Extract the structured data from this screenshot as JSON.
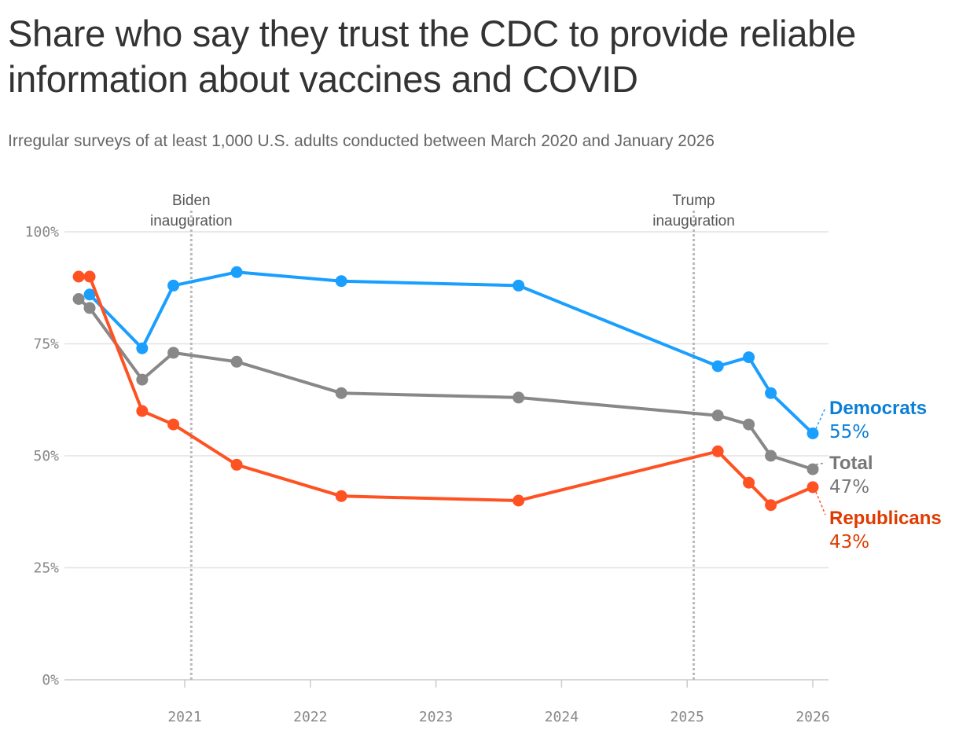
{
  "title": "Share who say they trust the CDC to provide reliable information about vaccines and COVID",
  "subtitle": "Irregular surveys of at least 1,000 U.S. adults conducted between March 2020 and January 2026",
  "chart_data": {
    "type": "line",
    "title": "Share who say they trust the CDC to provide reliable information about vaccines and COVID",
    "subtitle": "Irregular surveys of at least 1,000 U.S. adults conducted between March 2020 and January 2026",
    "xlabel": "",
    "ylabel": "",
    "xlim": [
      "2020-01-15",
      "2026-02-05"
    ],
    "ylim": [
      0,
      100
    ],
    "x_ticks": [
      {
        "date": "2021-01-01",
        "label": "2021"
      },
      {
        "date": "2022-01-01",
        "label": "2022"
      },
      {
        "date": "2023-01-01",
        "label": "2023"
      },
      {
        "date": "2024-01-01",
        "label": "2024"
      },
      {
        "date": "2025-01-01",
        "label": "2025"
      },
      {
        "date": "2026-01-01",
        "label": "2026"
      }
    ],
    "y_ticks": [
      {
        "value": 0,
        "label": "0%"
      },
      {
        "value": 25,
        "label": "25%"
      },
      {
        "value": 50,
        "label": "50%"
      },
      {
        "value": 75,
        "label": "75%"
      },
      {
        "value": 100,
        "label": "100%"
      }
    ],
    "grid": true,
    "annotations": [
      {
        "date": "2021-01-20",
        "lines": [
          "Biden",
          "inauguration"
        ]
      },
      {
        "date": "2025-01-20",
        "lines": [
          "Trump",
          "inauguration"
        ]
      }
    ],
    "series": [
      {
        "name": "Democrats",
        "end_label": "55%",
        "color": "#1a9fff",
        "label_color": "#0a7fd6",
        "points": [
          [
            "2020-03-30",
            86
          ],
          [
            "2020-08-30",
            74
          ],
          [
            "2020-11-29",
            88
          ],
          [
            "2021-06-01",
            91
          ],
          [
            "2022-04-01",
            89
          ],
          [
            "2023-08-29",
            88
          ],
          [
            "2025-03-31",
            70
          ],
          [
            "2025-06-29",
            72
          ],
          [
            "2025-09-01",
            64
          ],
          [
            "2026-01-01",
            55
          ]
        ]
      },
      {
        "name": "Total",
        "end_label": "47%",
        "color": "#888888",
        "label_color": "#777777",
        "points": [
          [
            "2020-02-27",
            85
          ],
          [
            "2020-03-30",
            83
          ],
          [
            "2020-08-30",
            67
          ],
          [
            "2020-11-29",
            73
          ],
          [
            "2021-06-01",
            71
          ],
          [
            "2022-04-01",
            64
          ],
          [
            "2023-08-29",
            63
          ],
          [
            "2025-03-31",
            59
          ],
          [
            "2025-06-29",
            57
          ],
          [
            "2025-09-01",
            50
          ],
          [
            "2026-01-01",
            47
          ]
        ]
      },
      {
        "name": "Republicans",
        "end_label": "43%",
        "color": "#ff5223",
        "label_color": "#e03a00",
        "points": [
          [
            "2020-02-27",
            90
          ],
          [
            "2020-03-30",
            90
          ],
          [
            "2020-08-30",
            60
          ],
          [
            "2020-11-29",
            57
          ],
          [
            "2021-06-01",
            48
          ],
          [
            "2022-04-01",
            41
          ],
          [
            "2023-08-29",
            40
          ],
          [
            "2025-03-31",
            51
          ],
          [
            "2025-06-29",
            44
          ],
          [
            "2025-09-01",
            39
          ],
          [
            "2026-01-01",
            43
          ]
        ]
      }
    ]
  }
}
